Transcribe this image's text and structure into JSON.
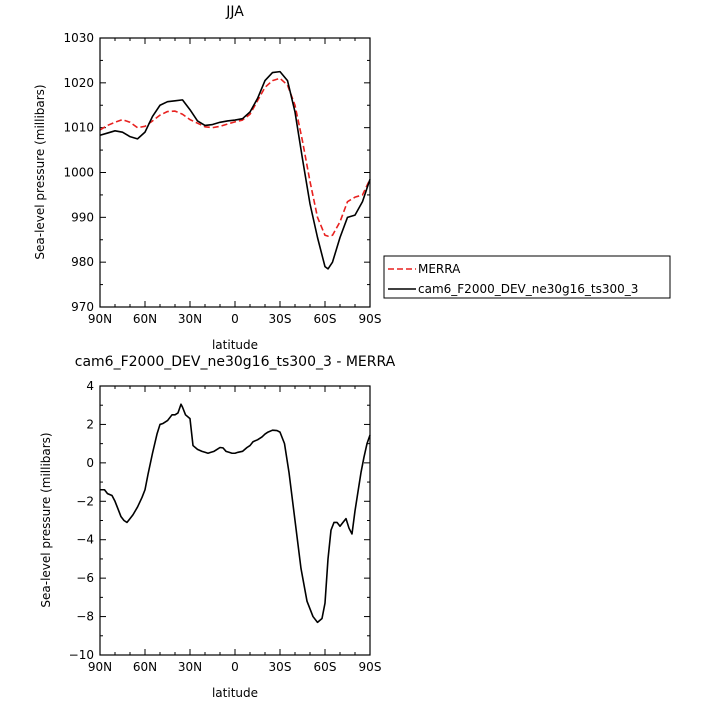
{
  "chart_data": [
    {
      "type": "line",
      "title": "JJA",
      "xlabel": "latitude",
      "ylabel": "Sea-level pressure (millibars)",
      "xlim": [
        90,
        -90
      ],
      "ylim": [
        970,
        1030
      ],
      "x_ticks": [
        90,
        60,
        30,
        0,
        -30,
        -60,
        -90
      ],
      "x_tick_labels": [
        "90N",
        "60N",
        "30N",
        "0",
        "30S",
        "60S",
        "90S"
      ],
      "y_ticks": [
        970,
        980,
        990,
        1000,
        1010,
        1020,
        1030
      ],
      "y_tick_labels": [
        "970",
        "980",
        "990",
        "1000",
        "1010",
        "1020",
        "1030"
      ],
      "legend": "outside-right",
      "series": [
        {
          "name": "MERRA",
          "color": "#e8211f",
          "dash": true,
          "x": [
            90,
            85,
            80,
            75,
            70,
            65,
            60,
            55,
            50,
            45,
            40,
            35,
            30,
            25,
            20,
            15,
            10,
            5,
            0,
            -5,
            -10,
            -15,
            -20,
            -25,
            -30,
            -35,
            -40,
            -45,
            -50,
            -55,
            -60,
            -62,
            -65,
            -70,
            -75,
            -80,
            -85,
            -90
          ],
          "y": [
            1009.5,
            1010.5,
            1011.2,
            1011.8,
            1011.2,
            1010.0,
            1010.3,
            1011.5,
            1012.8,
            1013.6,
            1013.7,
            1013.0,
            1011.8,
            1011.0,
            1010.2,
            1010.0,
            1010.3,
            1010.8,
            1011.3,
            1011.7,
            1013.0,
            1016.0,
            1019.0,
            1020.5,
            1021.0,
            1019.5,
            1015.0,
            1007.0,
            998.0,
            990.0,
            986.0,
            985.8,
            986.0,
            989.0,
            993.5,
            994.5,
            995.0,
            998.5
          ]
        },
        {
          "name": "cam6_F2000_DEV_ne30g16_ts300_3",
          "color": "#000000",
          "dash": false,
          "x": [
            90,
            85,
            80,
            75,
            70,
            65,
            60,
            55,
            50,
            45,
            40,
            35,
            30,
            25,
            20,
            15,
            10,
            5,
            0,
            -5,
            -10,
            -15,
            -20,
            -25,
            -30,
            -35,
            -40,
            -45,
            -50,
            -55,
            -60,
            -62,
            -65,
            -70,
            -75,
            -80,
            -85,
            -90
          ],
          "y": [
            1008.3,
            1008.8,
            1009.3,
            1009.0,
            1008.0,
            1007.5,
            1009.0,
            1012.5,
            1015.0,
            1015.8,
            1016.0,
            1016.2,
            1014.0,
            1011.5,
            1010.5,
            1010.7,
            1011.2,
            1011.5,
            1011.7,
            1012.0,
            1013.5,
            1016.5,
            1020.5,
            1022.3,
            1022.5,
            1020.5,
            1013.5,
            1003.0,
            993.0,
            985.5,
            979.0,
            978.5,
            980.0,
            985.5,
            990.0,
            990.5,
            993.5,
            998.5
          ]
        }
      ]
    },
    {
      "type": "line",
      "title": "cam6_F2000_DEV_ne30g16_ts300_3 - MERRA",
      "xlabel": "latitude",
      "ylabel": "Sea-level pressure (millibars)",
      "xlim": [
        90,
        -90
      ],
      "ylim": [
        -10,
        4
      ],
      "x_ticks": [
        90,
        60,
        30,
        0,
        -30,
        -60,
        -90
      ],
      "x_tick_labels": [
        "90N",
        "60N",
        "30N",
        "0",
        "30S",
        "60S",
        "90S"
      ],
      "y_ticks": [
        -10,
        -8,
        -6,
        -4,
        -2,
        0,
        2,
        4
      ],
      "y_tick_labels": [
        "−10",
        "−8",
        "−6",
        "−4",
        "−2",
        "0",
        "2",
        "4"
      ],
      "series": [
        {
          "color": "#000000",
          "dash": false,
          "x": [
            90,
            87,
            85,
            82,
            80,
            78,
            76,
            74,
            72,
            70,
            68,
            65,
            62,
            60,
            58,
            55,
            52,
            50,
            48,
            45,
            42,
            40,
            38,
            36,
            35,
            33,
            30,
            28,
            25,
            22,
            20,
            18,
            16,
            14,
            12,
            10,
            8,
            6,
            4,
            2,
            0,
            -2,
            -5,
            -8,
            -10,
            -12,
            -15,
            -18,
            -20,
            -22,
            -25,
            -28,
            -30,
            -33,
            -36,
            -40,
            -44,
            -48,
            -52,
            -55,
            -58,
            -60,
            -62,
            -64,
            -66,
            -68,
            -70,
            -72,
            -74,
            -76,
            -78,
            -80,
            -82,
            -84,
            -86,
            -88,
            -90
          ],
          "y": [
            -1.4,
            -1.4,
            -1.6,
            -1.7,
            -2.0,
            -2.4,
            -2.8,
            -3.0,
            -3.1,
            -2.9,
            -2.7,
            -2.3,
            -1.8,
            -1.4,
            -0.6,
            0.5,
            1.5,
            2.0,
            2.05,
            2.2,
            2.5,
            2.5,
            2.6,
            3.05,
            2.9,
            2.5,
            2.3,
            0.9,
            0.7,
            0.6,
            0.55,
            0.5,
            0.55,
            0.6,
            0.7,
            0.8,
            0.78,
            0.6,
            0.55,
            0.5,
            0.5,
            0.55,
            0.6,
            0.8,
            0.9,
            1.1,
            1.2,
            1.35,
            1.5,
            1.6,
            1.7,
            1.68,
            1.6,
            1.0,
            -0.5,
            -3.0,
            -5.5,
            -7.2,
            -8.0,
            -8.3,
            -8.1,
            -7.3,
            -5.0,
            -3.5,
            -3.1,
            -3.1,
            -3.3,
            -3.1,
            -2.9,
            -3.4,
            -3.7,
            -2.5,
            -1.5,
            -0.5,
            0.3,
            1.0,
            1.45
          ]
        }
      ]
    }
  ]
}
